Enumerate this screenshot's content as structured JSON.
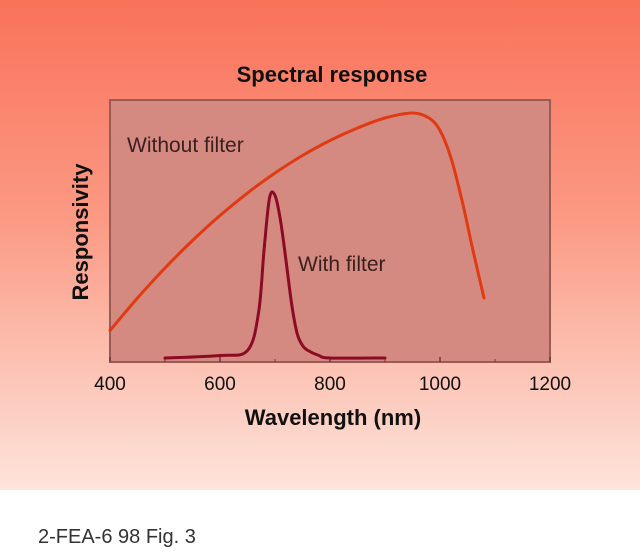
{
  "chart_data": {
    "type": "line",
    "title": "Spectral response",
    "xlabel": "Wavelength (nm)",
    "ylabel": "Responsivity",
    "xlim": [
      400,
      1200
    ],
    "ylim": [
      0,
      1.0
    ],
    "xticks": [
      400,
      600,
      800,
      1000,
      1200
    ],
    "grid": false,
    "series": [
      {
        "name": "Without filter",
        "color": "#e03a12",
        "x": [
          400,
          450,
          500,
          550,
          600,
          650,
          700,
          750,
          800,
          850,
          900,
          950,
          980,
          1000,
          1020,
          1040,
          1060,
          1080
        ],
        "y": [
          0.11,
          0.24,
          0.36,
          0.47,
          0.57,
          0.66,
          0.74,
          0.81,
          0.87,
          0.92,
          0.96,
          0.98,
          0.96,
          0.91,
          0.8,
          0.63,
          0.43,
          0.24
        ]
      },
      {
        "name": "With filter",
        "color": "#8b0a24",
        "x": [
          500,
          600,
          650,
          670,
          680,
          690,
          700,
          710,
          720,
          730,
          740,
          750,
          760,
          780,
          800,
          900
        ],
        "y": [
          0.0,
          0.01,
          0.03,
          0.18,
          0.43,
          0.64,
          0.65,
          0.55,
          0.39,
          0.22,
          0.1,
          0.05,
          0.03,
          0.01,
          0.0,
          0.0
        ]
      }
    ],
    "annotations": [
      "Without filter",
      "With filter"
    ]
  },
  "caption": "2-FEA-6 98 Fig. 3",
  "colors": {
    "plot_area": "#d48a80",
    "plot_border": "#9a5b55",
    "background_top": "#f9725a",
    "background_bottom": "#fde4dc"
  }
}
